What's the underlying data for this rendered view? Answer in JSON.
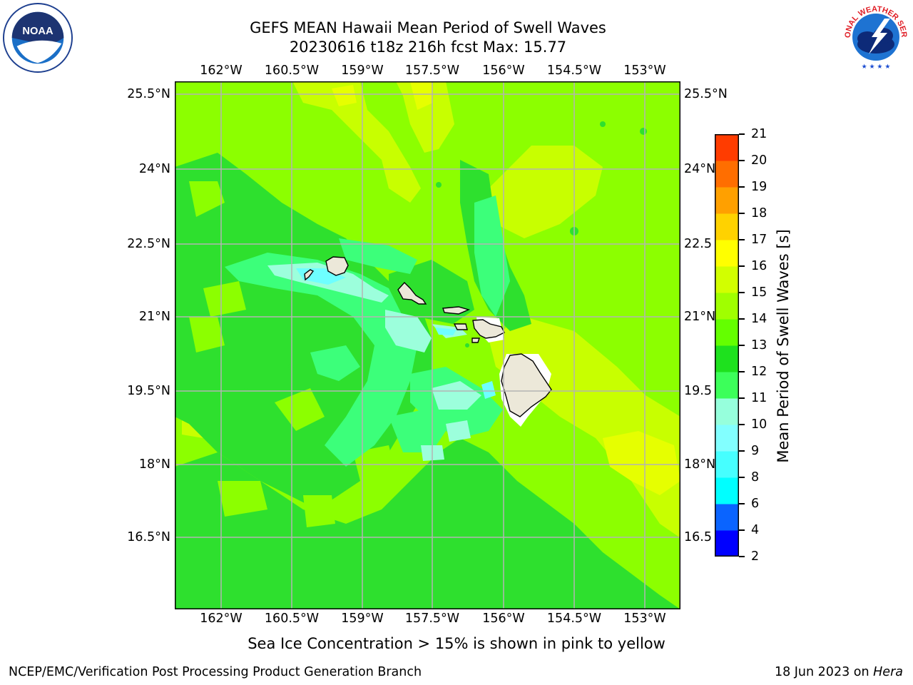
{
  "title_line1": "GEFS MEAN Hawaii Mean Period of Swell Waves",
  "title_line2": "20230616 t18z 216h fcst   Max: 15.77",
  "lon_ticks": [
    "162°W",
    "160.5°W",
    "159°W",
    "157.5°W",
    "156°W",
    "154.5°W",
    "153°W"
  ],
  "lat_ticks": [
    "25.5°N",
    "24°N",
    "22.5°N",
    "21°N",
    "19.5°N",
    "18°N",
    "16.5°N"
  ],
  "right_lat_ticks": [
    "25.5°N",
    "24°N",
    "22.5",
    "21°N",
    "19.5",
    "18°N",
    "16.5"
  ],
  "colorbar": {
    "title": "Mean Period of Swell Waves [s]",
    "levels": [
      "2",
      "4",
      "6",
      "8",
      "9",
      "10",
      "11",
      "12",
      "13",
      "14",
      "15",
      "16",
      "17",
      "18",
      "19",
      "20",
      "21"
    ],
    "colors": [
      "#0000ff",
      "#0a64ff",
      "#00ffff",
      "#46ffff",
      "#82ffff",
      "#96ffdc",
      "#3cff5a",
      "#1ee11e",
      "#64ff00",
      "#a0ff00",
      "#d2ff00",
      "#ffff00",
      "#ffd200",
      "#ffa000",
      "#ff6e00",
      "#ff3c00",
      "#ff0000"
    ]
  },
  "note": "Sea Ice Concentration > 15% is shown in pink to yellow",
  "footer_left": "NCEP/EMC/Verification Post Processing Product Generation Branch",
  "footer_date": "18 Jun 2023 on ",
  "footer_host": "Hera",
  "logos": {
    "left": "noaa-logo",
    "right": "nws-logo",
    "noaa_text": "NOAA",
    "nws_text": "NATIONAL WEATHER SERVICE"
  },
  "colors": {
    "land": "#ece8d9",
    "background_field": "#8cff00",
    "grid": "#b4b4b4"
  }
}
